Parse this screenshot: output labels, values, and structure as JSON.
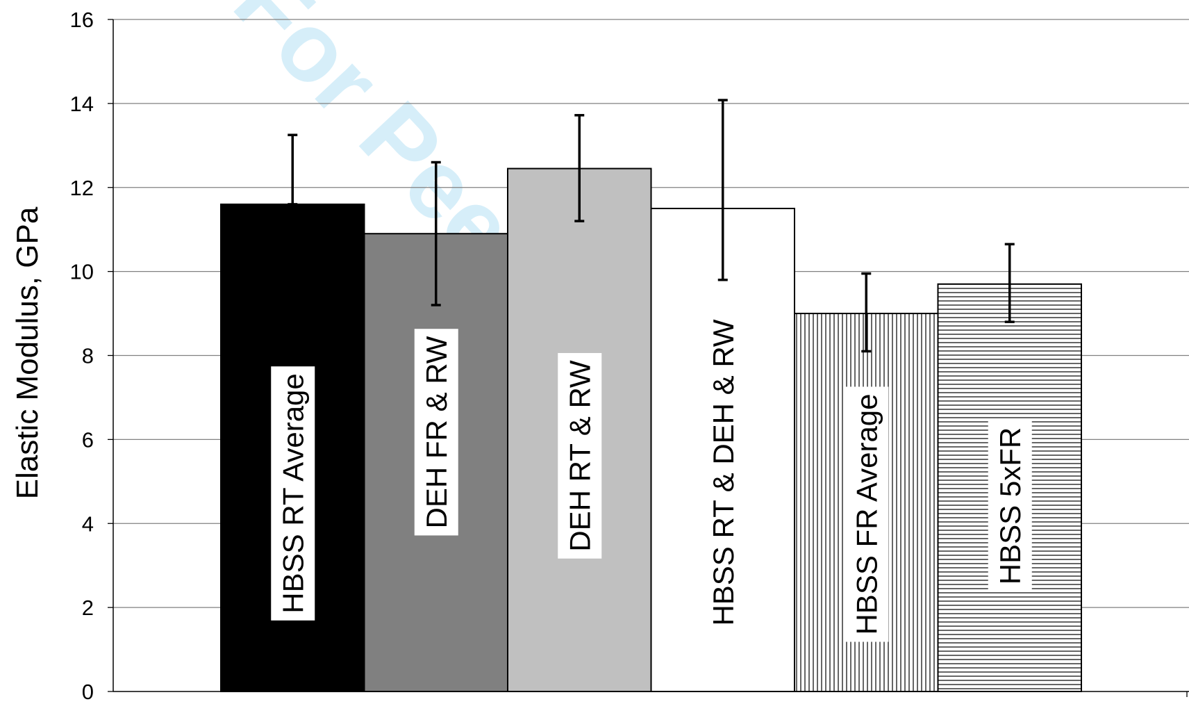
{
  "chart_data": {
    "type": "bar",
    "ylabel": "Elastic Modulus, GPa",
    "xlabel": "",
    "ylim": [
      0,
      16
    ],
    "yticks": [
      "0",
      "2",
      "4",
      "6",
      "8",
      "10",
      "12",
      "14",
      "16"
    ],
    "grid": true,
    "categories": [
      "HBSS RT Average",
      "DEH FR & RW",
      "DEH RT & RW",
      "HBSS RT & DEH & RW",
      "HBSS FR Average",
      "HBSS 5xFR"
    ],
    "values": [
      11.6,
      10.9,
      12.45,
      11.5,
      9.0,
      9.7
    ],
    "error_upper": [
      13.25,
      12.6,
      13.72,
      14.08,
      9.95,
      10.65
    ],
    "error_lower": [
      11.6,
      9.2,
      11.2,
      9.8,
      8.1,
      8.8
    ],
    "fills": [
      "solid-black",
      "solid-dark-gray",
      "solid-light-gray",
      "white",
      "vertical-hatch",
      "horizontal-hatch"
    ],
    "colors": {
      "black": "#000000",
      "dark_gray": "#808080",
      "light_gray": "#c0c0c0",
      "white": "#ffffff",
      "grid": "#808080"
    }
  },
  "watermark": "For Peer"
}
